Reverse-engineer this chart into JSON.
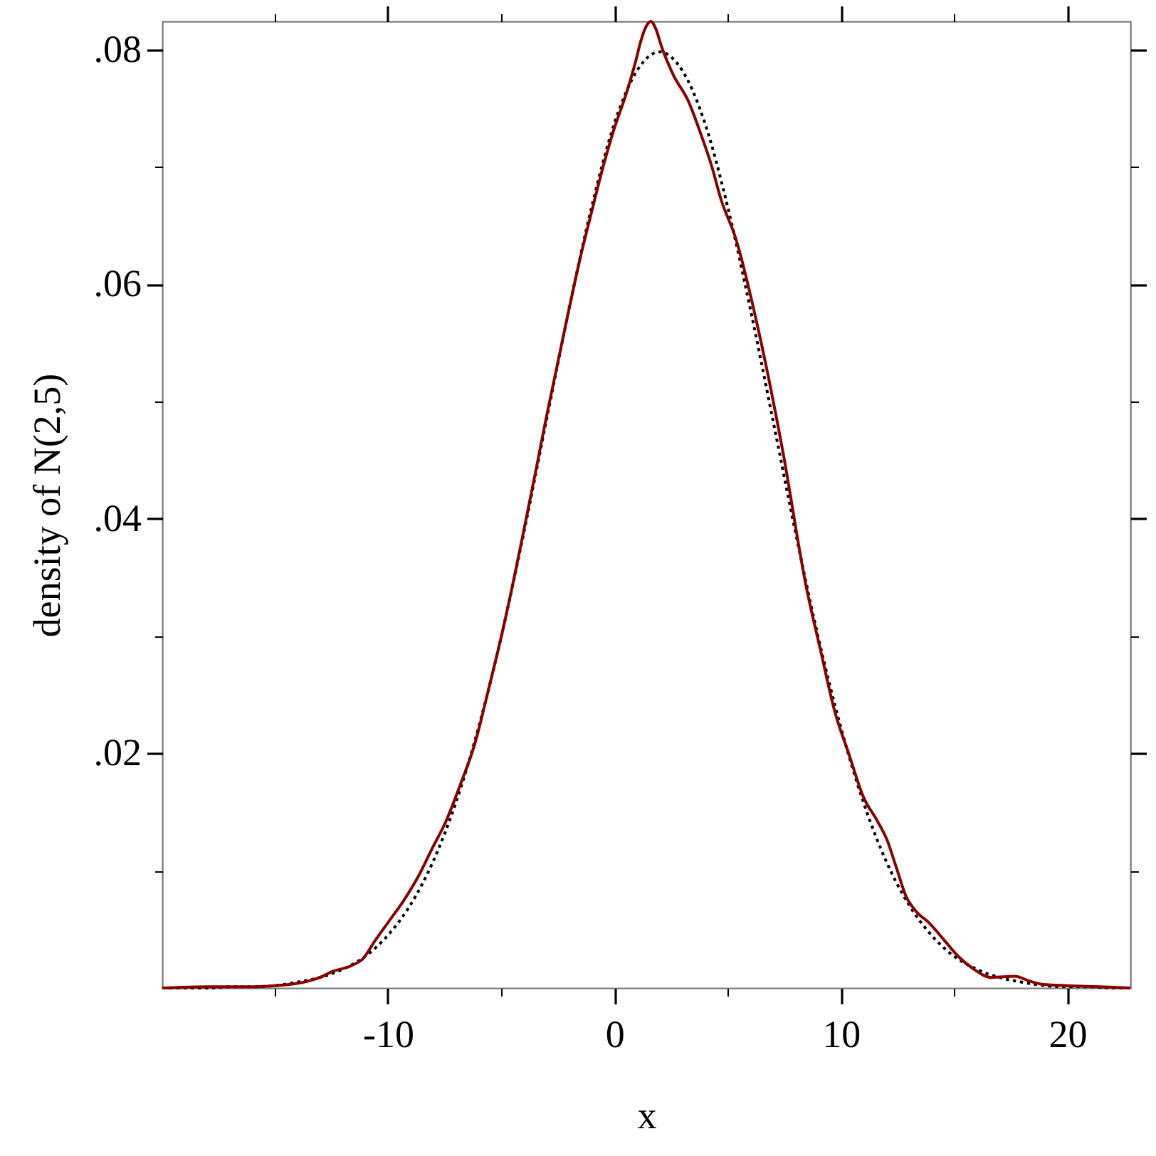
{
  "chart_data": {
    "type": "line",
    "xlabel": "x",
    "ylabel": "density of N(2,5)",
    "xlim": [
      -19.96,
      22.78
    ],
    "ylim": [
      0,
      0.0824
    ],
    "xticks": [
      {
        "value": -15,
        "label": null
      },
      -10,
      {
        "value": -5,
        "label": null
      },
      0,
      {
        "value": 5,
        "label": null
      },
      10,
      {
        "value": 15,
        "label": null
      },
      20
    ],
    "yticks": [
      {
        "value": 0.01,
        "label": null
      },
      {
        "value": 0.02,
        "label": ".02"
      },
      {
        "value": 0.03,
        "label": null
      },
      {
        "value": 0.04,
        "label": ".04"
      },
      {
        "value": 0.05,
        "label": null
      },
      {
        "value": 0.06,
        "label": ".06"
      },
      {
        "value": 0.07,
        "label": null
      },
      {
        "value": 0.08,
        "label": ".08"
      }
    ],
    "series": [
      {
        "color": "#000000",
        "line_style": "dotted",
        "x": [
          -19.96,
          -19,
          -18,
          -17,
          -16,
          -15,
          -14,
          -13,
          -12,
          -11,
          -10,
          -9,
          -8,
          -7,
          -6,
          -5,
          -4,
          -3,
          -2,
          -1,
          0,
          1,
          2,
          3,
          4,
          5,
          6,
          7,
          8,
          9,
          10,
          11,
          12,
          13,
          14,
          15,
          16,
          17,
          18,
          19,
          20,
          21,
          22,
          22.78
        ],
        "values": [
          0.0,
          0.0,
          0.0,
          0.0001,
          0.0001,
          0.0002,
          0.0005,
          0.0009,
          0.0016,
          0.0027,
          0.0045,
          0.0071,
          0.0108,
          0.0158,
          0.0222,
          0.0299,
          0.0388,
          0.0484,
          0.0579,
          0.0666,
          0.0737,
          0.0782,
          0.0798,
          0.0782,
          0.0737,
          0.0666,
          0.0579,
          0.0484,
          0.0388,
          0.0299,
          0.0222,
          0.0158,
          0.0108,
          0.0071,
          0.0045,
          0.0027,
          0.0016,
          0.0009,
          0.0005,
          0.0002,
          0.0001,
          0.0001,
          0.0,
          0.0
        ]
      },
      {
        "color": "#8b0000",
        "line_style": "solid",
        "x": [
          -19.96,
          -18,
          -16,
          -15,
          -14,
          -13.5,
          -13,
          -12.46,
          -11.62,
          -11.1,
          -10.58,
          -9.95,
          -9.32,
          -8.69,
          -8.07,
          -7.44,
          -6.81,
          -6.18,
          -5.5,
          -5,
          -4.5,
          -4,
          -3.5,
          -3,
          -2.5,
          -2,
          -1.5,
          -1,
          -0.5,
          0,
          0.5,
          0.94,
          1.15,
          1.36,
          1.61,
          1.82,
          2.09,
          2.61,
          3.24,
          3.87,
          4.29,
          4.71,
          5.34,
          6.38,
          7.43,
          8.48,
          9.1,
          9.74,
          10.36,
          10.99,
          11.62,
          12.04,
          12.46,
          12.88,
          13.29,
          13.92,
          14.55,
          15.18,
          15.8,
          16.65,
          17.69,
          18.32,
          18.95,
          20,
          21.4,
          22.78
        ],
        "values": [
          0.0,
          0.0001,
          0.0001,
          0.0002,
          0.0004,
          0.0006,
          0.0009,
          0.0014,
          0.0019,
          0.0025,
          0.004,
          0.0057,
          0.0074,
          0.0094,
          0.0118,
          0.0142,
          0.0173,
          0.0207,
          0.0259,
          0.0299,
          0.0343,
          0.039,
          0.0438,
          0.0487,
          0.0533,
          0.0579,
          0.0623,
          0.0662,
          0.07,
          0.0733,
          0.0761,
          0.079,
          0.0806,
          0.0818,
          0.0824,
          0.0818,
          0.0802,
          0.0778,
          0.0757,
          0.0725,
          0.0701,
          0.0672,
          0.064,
          0.0559,
          0.0458,
          0.0341,
          0.0288,
          0.0235,
          0.0199,
          0.0163,
          0.0142,
          0.0126,
          0.0102,
          0.0078,
          0.0066,
          0.0055,
          0.0041,
          0.0027,
          0.0017,
          0.0009,
          0.001,
          0.0006,
          0.0003,
          0.0002,
          0.0001,
          0.0
        ]
      }
    ]
  }
}
